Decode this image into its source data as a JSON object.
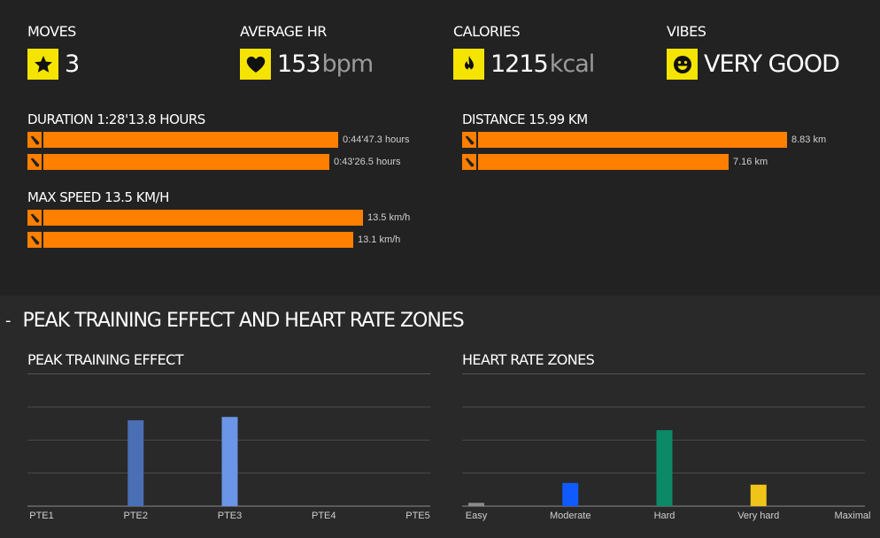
{
  "summary": {
    "moves": {
      "label": "MOVES",
      "value": "3",
      "unit": "",
      "icon": "star-icon"
    },
    "avg_hr": {
      "label": "AVERAGE HR",
      "value": "153",
      "unit": "bpm",
      "icon": "heart-icon"
    },
    "calories": {
      "label": "CALORIES",
      "value": "1215",
      "unit": "kcal",
      "icon": "flame-icon"
    },
    "vibes": {
      "label": "VIBES",
      "value": "VERY GOOD",
      "unit": "",
      "icon": "smiley-icon"
    }
  },
  "duration": {
    "title": "DURATION 1:28'13.8 HOURS",
    "rows": [
      {
        "label": "0:44'47.3 hours",
        "fraction": 1.0
      },
      {
        "label": "0:43'26.5 hours",
        "fraction": 0.97
      }
    ]
  },
  "distance": {
    "title": "DISTANCE 15.99 KM",
    "rows": [
      {
        "label": "8.83 km",
        "fraction": 1.0
      },
      {
        "label": "7.16 km",
        "fraction": 0.811
      }
    ]
  },
  "max_speed": {
    "title": "MAX SPEED 13.5 KM/H",
    "rows": [
      {
        "label": "13.5 km/h",
        "fraction": 1.0
      },
      {
        "label": "13.1 km/h",
        "fraction": 0.97
      }
    ]
  },
  "section": {
    "toggle": "-",
    "title": "PEAK TRAINING EFFECT AND HEART RATE ZONES"
  },
  "chart_data": [
    {
      "type": "bar",
      "title": "PEAK TRAINING EFFECT",
      "categories": [
        "PTE1",
        "PTE2",
        "PTE3",
        "PTE4",
        "PTE5"
      ],
      "values": [
        0,
        2.6,
        2.7,
        0,
        0
      ],
      "colors": [
        "#4a6fb5",
        "#4a6fb5",
        "#6b95e6",
        "#4a6fb5",
        "#4a6fb5"
      ],
      "ylim": [
        0,
        3
      ],
      "grid_lines": [
        1,
        2,
        3
      ]
    },
    {
      "type": "bar",
      "title": "HEART RATE ZONES",
      "categories": [
        "Easy",
        "Moderate",
        "Hard",
        "Very hard",
        "Maximal"
      ],
      "values": [
        1,
        7,
        23,
        6.5,
        0
      ],
      "colors": [
        "#8a8a8a",
        "#0f5bff",
        "#0c8a68",
        "#f0c419",
        "#cc3333"
      ],
      "ylim": [
        0,
        30
      ],
      "grid_lines": [
        10,
        20,
        30
      ]
    }
  ]
}
